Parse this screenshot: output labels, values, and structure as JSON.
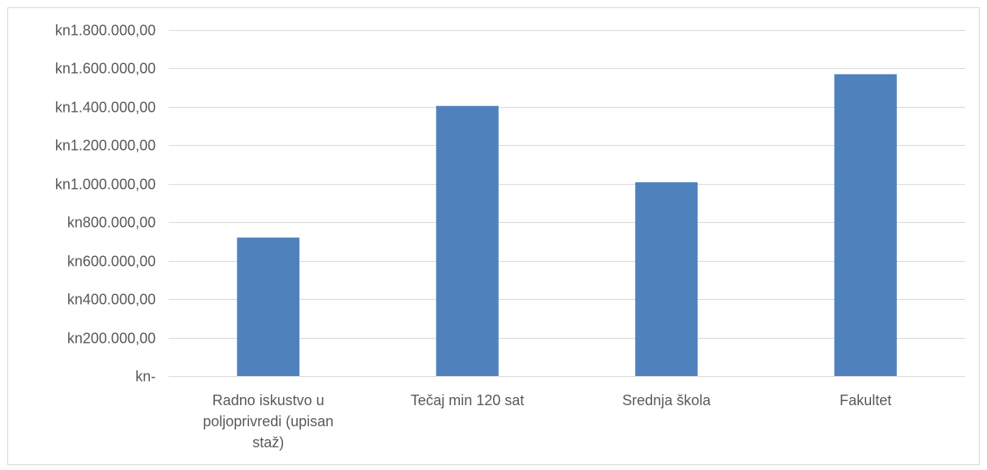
{
  "chart_data": {
    "type": "bar",
    "title": "",
    "xlabel": "",
    "ylabel": "",
    "categories": [
      "Radno iskustvo u poljoprivredi (upisan staž)",
      "Tečaj min 120 sat",
      "Srednja škola",
      "Fakultet"
    ],
    "category_label_lines": [
      [
        "Radno iskustvo u",
        "poljoprivredi (upisan",
        "staž)"
      ],
      [
        "Tečaj min 120 sat"
      ],
      [
        "Srednja škola"
      ],
      [
        "Fakultet"
      ]
    ],
    "values": [
      720000,
      1405000,
      1008000,
      1570000
    ],
    "ylim": [
      0,
      1800000
    ],
    "yticks": [
      0,
      200000,
      400000,
      600000,
      800000,
      1000000,
      1200000,
      1400000,
      1600000,
      1800000
    ],
    "ytick_labels": [
      "kn-",
      "kn200.000,00",
      "kn400.000,00",
      "kn600.000,00",
      "kn800.000,00",
      "kn1.000.000,00",
      "kn1.200.000,00",
      "kn1.400.000,00",
      "kn1.600.000,00",
      "kn1.800.000,00"
    ],
    "grid": true,
    "legend": "none",
    "colors": {
      "bar": "#4f81bd",
      "grid": "#d9d9d9",
      "text": "#595959"
    }
  }
}
